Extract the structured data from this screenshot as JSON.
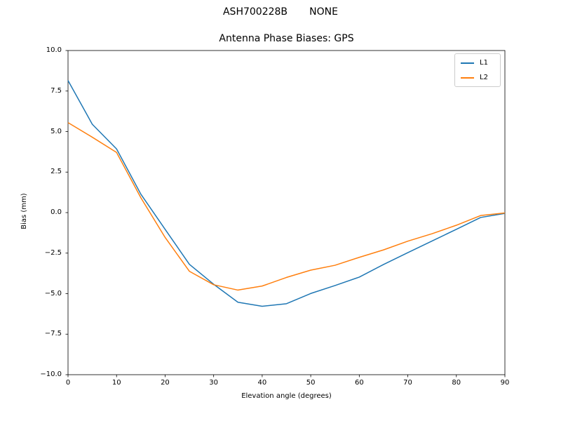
{
  "chart_data": {
    "type": "line",
    "suptitle": "ASH700228B       NONE",
    "title": "Antenna Phase Biases: GPS",
    "xlabel": "Elevation angle (degrees)",
    "ylabel": "Bias (mm)",
    "xlim": [
      0,
      90
    ],
    "ylim": [
      -10,
      10
    ],
    "xticks": [
      0,
      10,
      20,
      30,
      40,
      50,
      60,
      70,
      80,
      90
    ],
    "yticks": [
      10.0,
      7.5,
      5.0,
      2.5,
      0.0,
      -2.5,
      -5.0,
      -7.5,
      -10.0
    ],
    "ytick_labels": [
      "10.0",
      "7.5",
      "5.0",
      "2.5",
      "0.0",
      "−2.5",
      "−5.0",
      "−7.5",
      "−10.0"
    ],
    "grid": false,
    "legend_position": "upper right",
    "x": [
      0,
      5,
      10,
      15,
      20,
      25,
      30,
      35,
      40,
      45,
      50,
      55,
      60,
      65,
      70,
      75,
      80,
      85,
      90
    ],
    "series": [
      {
        "name": "L1",
        "color": "#1f77b4",
        "values": [
          8.15,
          5.45,
          3.93,
          1.14,
          -1.03,
          -3.19,
          -4.42,
          -5.53,
          -5.78,
          -5.62,
          -4.99,
          -4.5,
          -3.98,
          -3.2,
          -2.47,
          -1.75,
          -1.03,
          -0.3,
          -0.05
        ]
      },
      {
        "name": "L2",
        "color": "#ff7f0e",
        "values": [
          5.55,
          4.65,
          3.71,
          0.92,
          -1.53,
          -3.62,
          -4.45,
          -4.78,
          -4.53,
          -4.0,
          -3.55,
          -3.25,
          -2.76,
          -2.3,
          -1.76,
          -1.3,
          -0.78,
          -0.18,
          -0.02
        ]
      }
    ]
  }
}
